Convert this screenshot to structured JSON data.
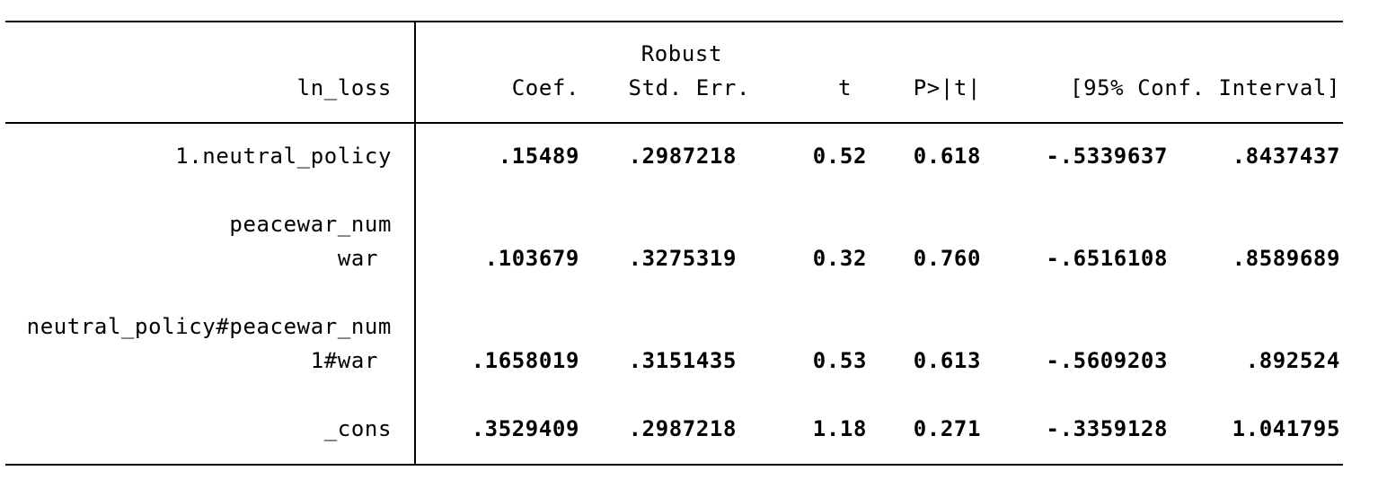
{
  "table": {
    "header": {
      "dependent_var": "ln_loss",
      "robust_label": "Robust",
      "coef": "Coef.",
      "std_err": "Std. Err.",
      "t": "t",
      "p": "P>|t|",
      "ci": "[95% Conf. Interval]"
    },
    "rows": [
      {
        "label": "1.neutral_policy",
        "coef": ".15489",
        "std_err": ".2987218",
        "t": "0.52",
        "p": "0.618",
        "ci_low": "-.5339637",
        "ci_high": ".8437437"
      },
      {
        "group": "peacewar_num",
        "label": "war",
        "coef": ".103679",
        "std_err": ".3275319",
        "t": "0.32",
        "p": "0.760",
        "ci_low": "-.6516108",
        "ci_high": ".8589689"
      },
      {
        "group": "neutral_policy#peacewar_num",
        "label": "1#war",
        "coef": ".1658019",
        "std_err": ".3151435",
        "t": "0.53",
        "p": "0.613",
        "ci_low": "-.5609203",
        "ci_high": ".892524"
      },
      {
        "label": "_cons",
        "coef": ".3529409",
        "std_err": ".2987218",
        "t": "1.18",
        "p": "0.271",
        "ci_low": "-.3359128",
        "ci_high": "1.041795"
      }
    ]
  }
}
